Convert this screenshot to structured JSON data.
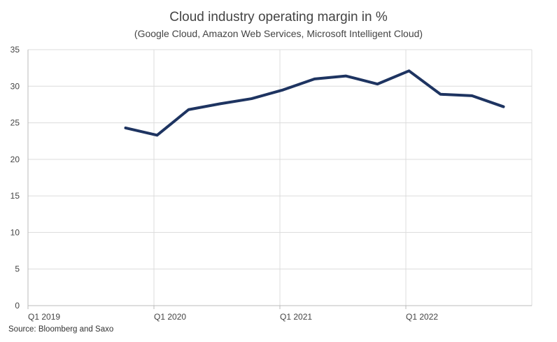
{
  "chart_data": {
    "type": "line",
    "title": "Cloud industry operating margin in %",
    "subtitle": "(Google Cloud, Amazon Web Services, Microsoft Intelligent Cloud)",
    "xlabel": "",
    "ylabel": "",
    "x_tick_labels": [
      "Q1 2019",
      "Q1 2020",
      "Q1 2021",
      "Q1 2022"
    ],
    "y_ticks": [
      0,
      5,
      10,
      15,
      20,
      25,
      30,
      35
    ],
    "ylim": [
      0,
      35
    ],
    "grid": true,
    "series": [
      {
        "color": "#1e3461",
        "x": [
          "Q4 2019",
          "Q1 2020",
          "Q2 2020",
          "Q3 2020",
          "Q4 2020",
          "Q1 2021",
          "Q2 2021",
          "Q3 2021",
          "Q4 2021",
          "Q1 2022",
          "Q2 2022",
          "Q3 2022",
          "Q4 2022"
        ],
        "values": [
          24.3,
          23.3,
          26.8,
          27.6,
          28.3,
          29.5,
          31.0,
          31.4,
          30.3,
          32.1,
          28.9,
          28.7,
          27.2
        ]
      }
    ]
  },
  "source": "Source: Bloomberg and Saxo"
}
